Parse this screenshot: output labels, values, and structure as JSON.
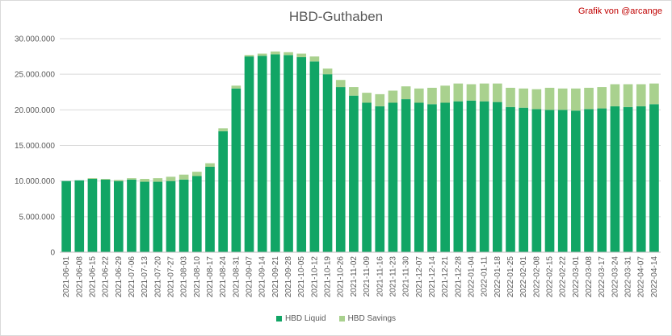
{
  "chart_data": {
    "type": "bar",
    "stacked": true,
    "title": "HBD-Guthaben",
    "credit": "Grafik von @arcange",
    "ylim": [
      0,
      30000000
    ],
    "y_ticks": [
      "0",
      "5.000.000",
      "10.000.000",
      "15.000.000",
      "20.000.000",
      "25.000.000",
      "30.000.000"
    ],
    "grid": true,
    "legend_position": "bottom",
    "date_labels": [
      "2021-06-01",
      "2021-06-08",
      "2021-06-15",
      "2021-06-22",
      "2021-06-29",
      "2021-07-06",
      "2021-07-13",
      "2021-07-20",
      "2021-07-27",
      "2021-08-03",
      "2021-08-10",
      "2021-08-17",
      "2021-08-24",
      "2021-08-31",
      "2021-09-07",
      "2021-09-14",
      "2021-09-21",
      "2021-09-28",
      "2021-10-05",
      "2021-10-12",
      "2021-10-19",
      "2021-10-26",
      "2021-11-02",
      "2021-11-09",
      "2021-11-16",
      "2021-11-23",
      "2021-11-30",
      "2021-12-07",
      "2021-12-14",
      "2021-12-21",
      "2021-12-28",
      "2022-01-04",
      "2022-01-11",
      "2022-01-18",
      "2022-01-25",
      "2022-02-01",
      "2022-02-08",
      "2022-02-15",
      "2022-02-22",
      "2022-03-01",
      "2022-03-08",
      "2022-03-17",
      "2022-03-24",
      "2022-03-31",
      "2022-04-07",
      "2022-04-14"
    ],
    "series": [
      {
        "name": "HBD Liquid",
        "color": "#11a565",
        "values": [
          10000000,
          10100000,
          10300000,
          10200000,
          10000000,
          10200000,
          9900000,
          9900000,
          10000000,
          10200000,
          10700000,
          12000000,
          17000000,
          23000000,
          27500000,
          27600000,
          27800000,
          27700000,
          27400000,
          26800000,
          25000000,
          23200000,
          22000000,
          21000000,
          20500000,
          21000000,
          21500000,
          21000000,
          20800000,
          21000000,
          21200000,
          21300000,
          21200000,
          21100000,
          20400000,
          20300000,
          20100000,
          20000000,
          20000000,
          19900000,
          20100000,
          20200000,
          20500000,
          20400000,
          20500000,
          20800000
        ]
      },
      {
        "name": "HBD Savings",
        "color": "#a9d18e",
        "values": [
          0,
          0,
          100000,
          100000,
          150000,
          200000,
          400000,
          500000,
          600000,
          700000,
          600000,
          500000,
          400000,
          400000,
          200000,
          300000,
          400000,
          400000,
          500000,
          700000,
          800000,
          1000000,
          1200000,
          1400000,
          1700000,
          1700000,
          1800000,
          2000000,
          2300000,
          2400000,
          2500000,
          2300000,
          2500000,
          2600000,
          2700000,
          2700000,
          2800000,
          3100000,
          3000000,
          3100000,
          3000000,
          3000000,
          3100000,
          3200000,
          3100000,
          2900000
        ]
      }
    ]
  }
}
